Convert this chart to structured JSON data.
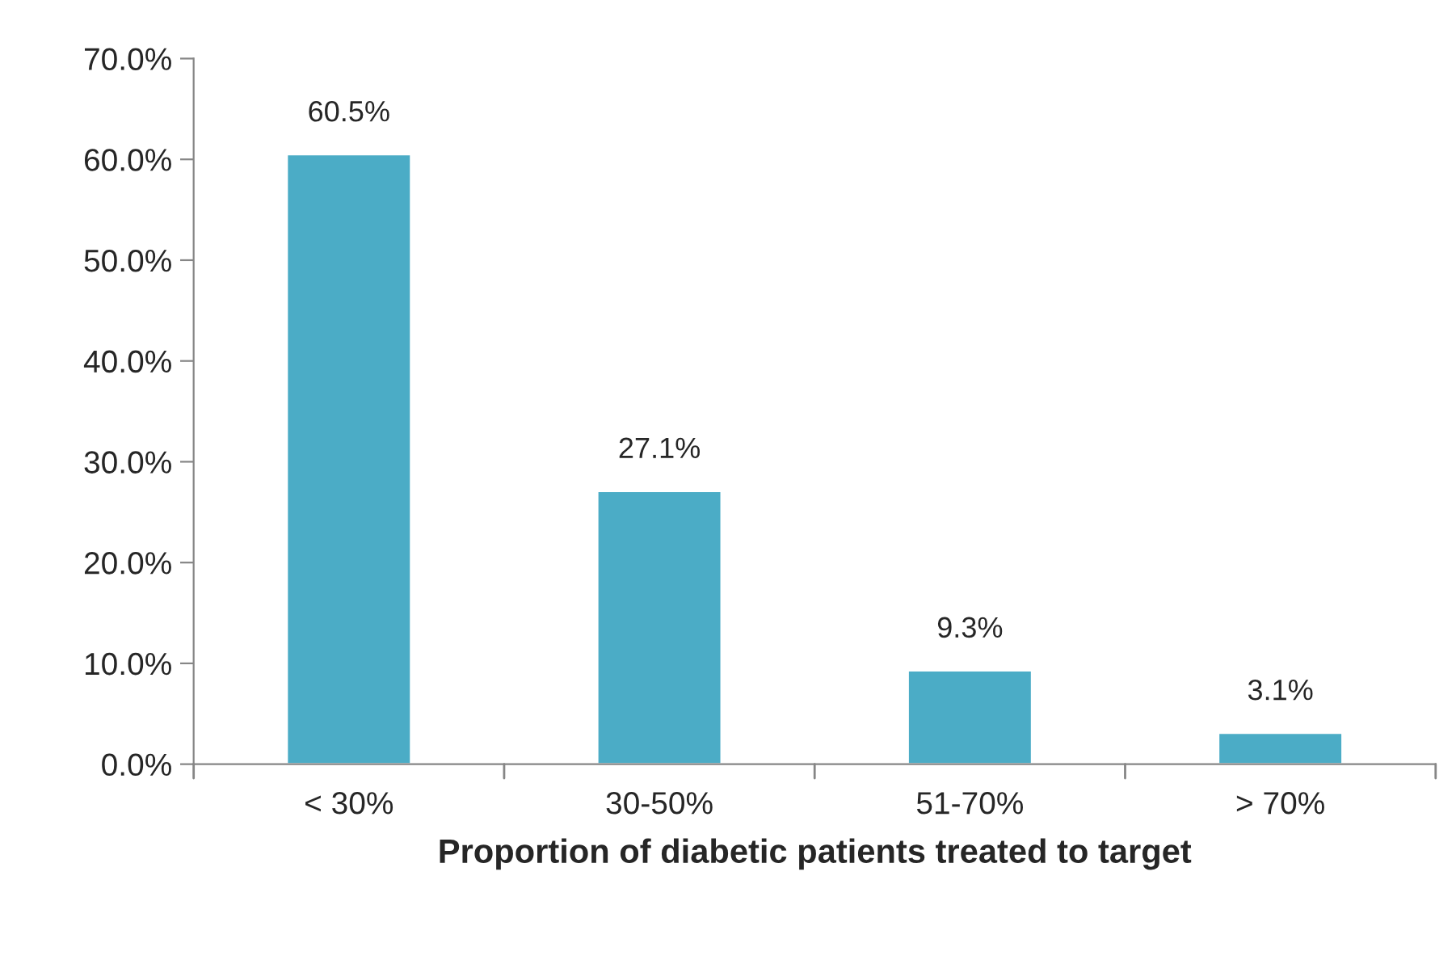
{
  "chart_data": {
    "type": "bar",
    "xlabel": "Proportion of diabetic patients treated to target",
    "categories": [
      "< 30%",
      "30-50%",
      "51-70%",
      "> 70%"
    ],
    "values": [
      60.5,
      27.1,
      9.3,
      3.1
    ],
    "value_labels": [
      "60.5%",
      "27.1%",
      "9.3%",
      "3.1%"
    ],
    "color": "#4bacc6",
    "ylim": [
      0,
      70
    ],
    "yticks": [
      {
        "value": 0,
        "label": "0.0%"
      },
      {
        "value": 10,
        "label": "10.0%"
      },
      {
        "value": 20,
        "label": "20.0%"
      },
      {
        "value": 30,
        "label": "30.0%"
      },
      {
        "value": 40,
        "label": "40.0%"
      },
      {
        "value": 50,
        "label": "50.0%"
      },
      {
        "value": 60,
        "label": "60.0%"
      },
      {
        "value": 70,
        "label": "70.0%"
      }
    ],
    "grid": false
  }
}
